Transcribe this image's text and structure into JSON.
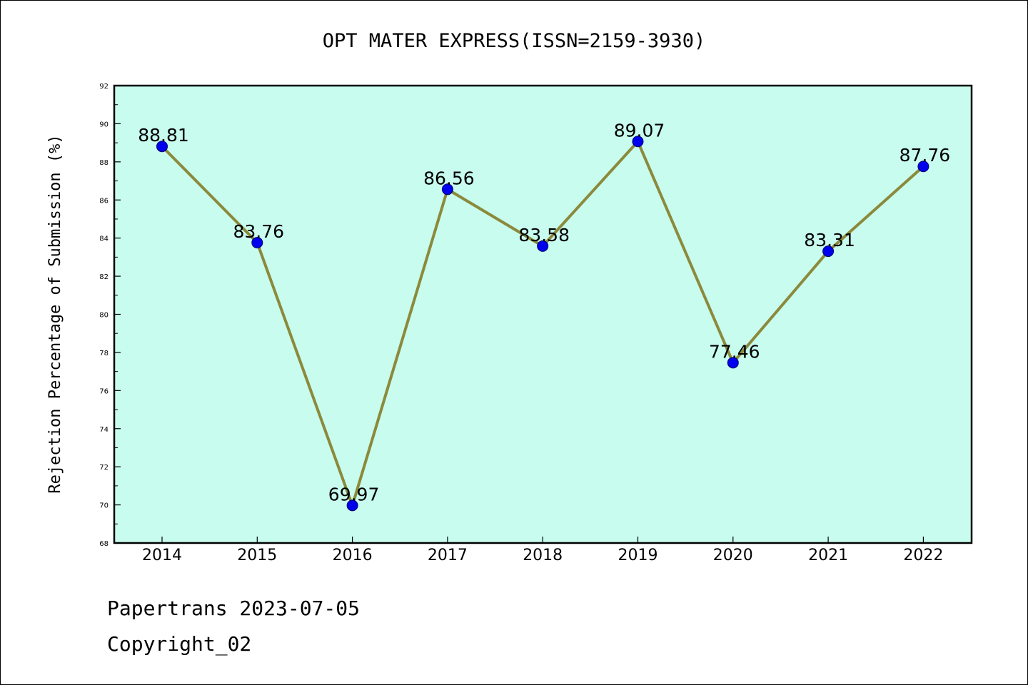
{
  "chart_data": {
    "type": "line",
    "title": "OPT MATER EXPRESS(ISSN=2159-3930)",
    "xlabel": "",
    "ylabel": "Rejection Percentage of Submission (%)",
    "categories": [
      "2014",
      "2015",
      "2016",
      "2017",
      "2018",
      "2019",
      "2020",
      "2021",
      "2022"
    ],
    "series": [
      {
        "values": [
          88.81,
          83.76,
          69.97,
          86.56,
          83.58,
          89.07,
          77.46,
          83.31,
          87.76
        ],
        "data_labels": [
          "88.81",
          "83.76",
          "69.97",
          "86.56",
          "83.58",
          "89.07",
          "77.46",
          "83.31",
          "87.76"
        ]
      }
    ],
    "ylim": [
      68,
      92
    ],
    "yticks": [
      "68",
      "70",
      "72",
      "74",
      "76",
      "78",
      "80",
      "82",
      "84",
      "86",
      "88",
      "90",
      "92"
    ],
    "grid": false,
    "legend": "none",
    "colors": {
      "plot_background": "#c8fcee",
      "line": "#8b8a3c",
      "marker_fill": "#0000ee",
      "marker_stroke": "#00006a"
    }
  },
  "footer": {
    "line1": "Papertrans 2023-07-05",
    "line2": "Copyright_02"
  }
}
